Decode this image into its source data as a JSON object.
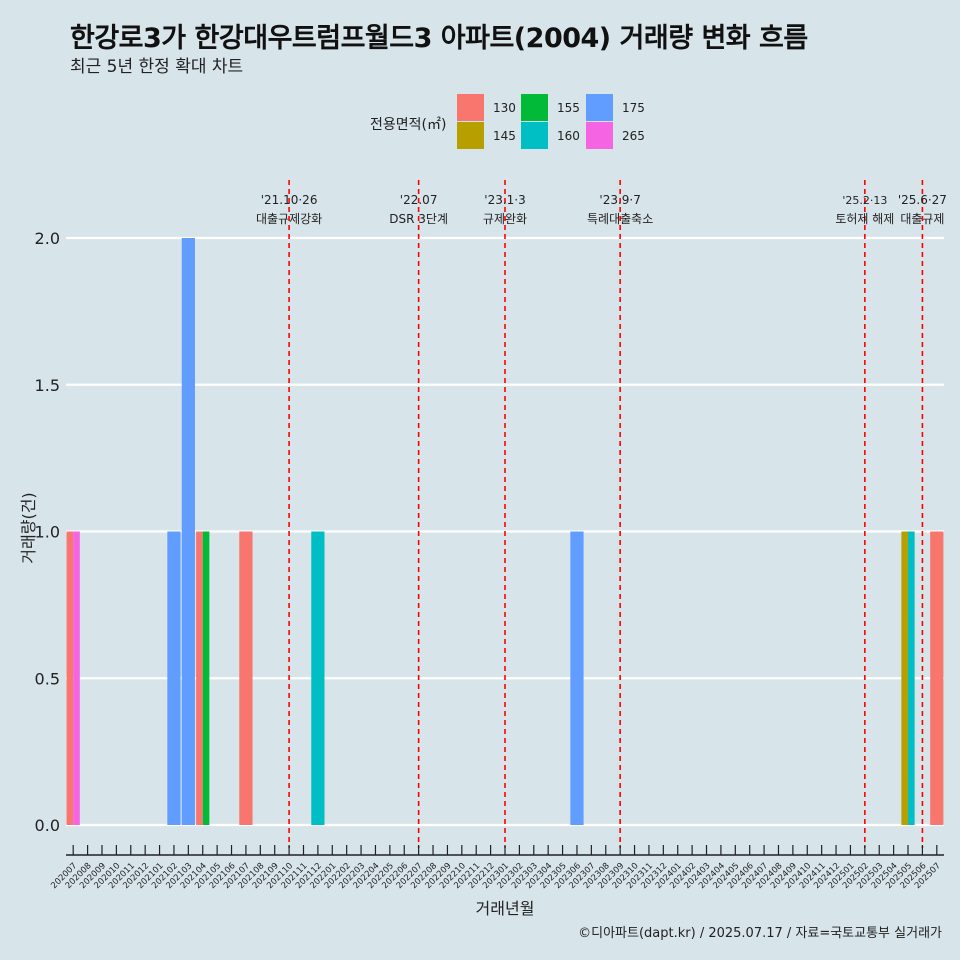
{
  "title": "한강로3가 한강대우트럼프월드3 아파트(2004) 거래량 변화 흐름",
  "subtitle": "최근 5년 한정 확대 차트",
  "caption": "©디아파트(dapt.kr) / 2025.07.17 / 자료=국토교통부 실거래가",
  "legend": {
    "title": "전용면적(㎡)",
    "items": [
      {
        "label": "130",
        "color": "#f8766d"
      },
      {
        "label": "145",
        "color": "#b79f00"
      },
      {
        "label": "155",
        "color": "#00ba38"
      },
      {
        "label": "160",
        "color": "#00bfc4"
      },
      {
        "label": "175",
        "color": "#619cff"
      },
      {
        "label": "265",
        "color": "#f564e3"
      }
    ]
  },
  "chart_data": {
    "type": "bar",
    "xlabel": "거래년월",
    "ylabel": "거래량(건)",
    "ylim": [
      -0.1,
      2.2
    ],
    "y_ticks": [
      "0.0",
      "0.5",
      "1.0",
      "1.5",
      "2.0"
    ],
    "grid": true,
    "legend_position": "top",
    "categories": [
      "202007",
      "202008",
      "202009",
      "202010",
      "202011",
      "202012",
      "202101",
      "202102",
      "202103",
      "202104",
      "202105",
      "202106",
      "202107",
      "202108",
      "202109",
      "202110",
      "202111",
      "202112",
      "202201",
      "202202",
      "202203",
      "202204",
      "202205",
      "202206",
      "202207",
      "202208",
      "202209",
      "202210",
      "202211",
      "202212",
      "202301",
      "202302",
      "202303",
      "202304",
      "202305",
      "202306",
      "202307",
      "202308",
      "202309",
      "202310",
      "202311",
      "202312",
      "202401",
      "202402",
      "202403",
      "202404",
      "202405",
      "202406",
      "202407",
      "202408",
      "202409",
      "202410",
      "202411",
      "202412",
      "202501",
      "202502",
      "202503",
      "202504",
      "202505",
      "202506",
      "202507"
    ],
    "bars": [
      {
        "month": "202007",
        "area": "130",
        "value": 1
      },
      {
        "month": "202007",
        "area": "265",
        "value": 1
      },
      {
        "month": "202102",
        "area": "175",
        "value": 1
      },
      {
        "month": "202103",
        "area": "175",
        "value": 2
      },
      {
        "month": "202104",
        "area": "130",
        "value": 1
      },
      {
        "month": "202104",
        "area": "155",
        "value": 1
      },
      {
        "month": "202107",
        "area": "130",
        "value": 1
      },
      {
        "month": "202112",
        "area": "160",
        "value": 1
      },
      {
        "month": "202306",
        "area": "175",
        "value": 1
      },
      {
        "month": "202505",
        "area": "145",
        "value": 1
      },
      {
        "month": "202505",
        "area": "160",
        "value": 1
      },
      {
        "month": "202507",
        "area": "130",
        "value": 1
      }
    ],
    "events": [
      {
        "date": "'21.10·26",
        "label": "대출규제강화",
        "month": "202110"
      },
      {
        "date": "'22.07",
        "label": "DSR 3단계",
        "month": "202207"
      },
      {
        "date": "'23.1·3",
        "label": "규제완화",
        "month": "202301"
      },
      {
        "date": "'23.9·7",
        "label": "특례대출축소",
        "month": "202309"
      },
      {
        "date": "'25.2·13",
        "label": "토허제 해제",
        "month": "202502"
      },
      {
        "date": "'25.6·27",
        "label": "대출규제",
        "month": "202506"
      }
    ]
  }
}
